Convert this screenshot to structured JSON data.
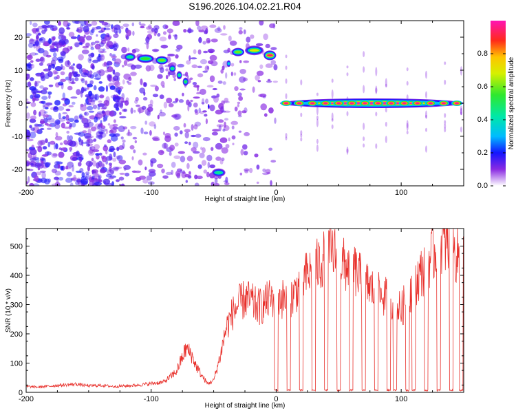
{
  "figure_title": "S196.2026.104.02.21.R04",
  "chart_data": [
    {
      "type": "heatmap",
      "title": "S196.2026.104.02.21.R04",
      "xlabel": "Height of straight line (km)",
      "ylabel": "Frequency (Hz)",
      "xlim": [
        -200,
        150
      ],
      "ylim": [
        -25,
        25
      ],
      "xticks": [
        -200,
        -100,
        0,
        100
      ],
      "yticks": [
        -20,
        -10,
        0,
        10,
        20
      ],
      "colorbar": {
        "label": "Normalized spectral amplitude",
        "range": [
          0,
          1
        ],
        "ticks": [
          0.0,
          0.2,
          0.4,
          0.6,
          0.8
        ],
        "tick_labels": [
          "0.0",
          "0.2",
          "0.4",
          "0.6",
          "0.8"
        ]
      },
      "ridge": [
        {
          "x0": -122,
          "x1": -112,
          "freq": 14,
          "amp": 0.45
        },
        {
          "x0": -112,
          "x1": -97,
          "freq": 13.5,
          "amp": 0.55
        },
        {
          "x0": -97,
          "x1": -86,
          "freq": 13,
          "amp": 0.6
        },
        {
          "x0": -86,
          "x1": -80,
          "freq": 10.5,
          "amp": 0.45
        },
        {
          "x0": -80,
          "x1": -75,
          "freq": 8.5,
          "amp": 0.45
        },
        {
          "x0": -75,
          "x1": -70,
          "freq": 6.5,
          "amp": 0.5
        },
        {
          "x0": -55,
          "x1": -53,
          "freq": -1,
          "amp": 0.2
        },
        {
          "x0": -52,
          "x1": -40,
          "freq": -21,
          "amp": 0.45
        },
        {
          "x0": -40,
          "x1": -36,
          "freq": 12,
          "amp": 0.35
        },
        {
          "x0": -36,
          "x1": -25,
          "freq": 15.5,
          "amp": 0.6
        },
        {
          "x0": -25,
          "x1": -10,
          "freq": 16,
          "amp": 0.7
        },
        {
          "x0": -10,
          "x1": 0,
          "freq": 14.5,
          "amp": 0.95
        },
        {
          "x0": 3,
          "x1": 150,
          "freq": 0,
          "amp": 1.0
        }
      ]
    },
    {
      "type": "line",
      "xlabel": "Height of straight line (km)",
      "ylabel": "SNR (10 * v/v)",
      "xlim": [
        -200,
        150
      ],
      "ylim": [
        0,
        560
      ],
      "xticks": [
        -200,
        -100,
        0,
        100
      ],
      "yticks": [
        0,
        100,
        200,
        300,
        400,
        500
      ],
      "series": [
        {
          "name": "SNR",
          "color": "#e8302b",
          "x": [
            -200,
            -190,
            -180,
            -170,
            -160,
            -150,
            -140,
            -130,
            -120,
            -110,
            -100,
            -90,
            -80,
            -76,
            -72,
            -68,
            -64,
            -60,
            -55,
            -50,
            -45,
            -40,
            -35,
            -30,
            -25,
            -20,
            -15,
            -10,
            -5,
            0,
            5,
            10,
            15,
            20,
            25,
            30,
            35,
            40,
            45,
            50,
            55,
            60,
            65,
            70,
            75,
            80,
            85,
            90,
            95,
            100,
            105,
            110,
            115,
            120,
            125,
            130,
            135,
            140,
            145,
            150
          ],
          "values": [
            20,
            18,
            22,
            25,
            28,
            22,
            24,
            20,
            22,
            25,
            30,
            35,
            70,
            110,
            150,
            130,
            90,
            60,
            30,
            40,
            120,
            220,
            270,
            300,
            320,
            310,
            290,
            300,
            320,
            330,
            320,
            310,
            340,
            380,
            400,
            420,
            440,
            470,
            480,
            450,
            430,
            440,
            400,
            380,
            360,
            340,
            330,
            320,
            300,
            280,
            330,
            370,
            400,
            440,
            470,
            500,
            510,
            480,
            470,
            460
          ]
        }
      ],
      "dropouts_x": [
        0,
        10,
        20,
        30,
        40,
        50,
        60,
        70,
        80,
        90,
        95,
        105,
        110,
        120,
        130,
        140,
        148
      ]
    }
  ]
}
